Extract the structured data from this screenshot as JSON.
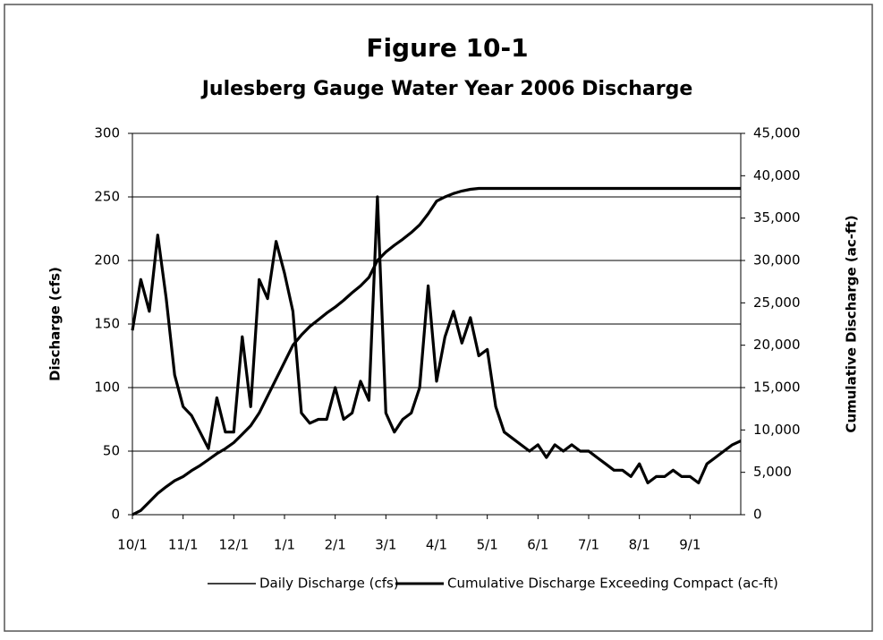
{
  "chart_data": {
    "type": "line",
    "title": "Figure 10-1",
    "subtitle": "Julesberg Gauge Water Year 2006 Discharge",
    "y_label": "Discharge (cfs)",
    "y2_label": "Cumulative Discharge (ac-ft)",
    "categories": [
      "10/1",
      null,
      null,
      null,
      null,
      null,
      "11/1",
      null,
      null,
      null,
      null,
      null,
      "12/1",
      null,
      null,
      null,
      null,
      null,
      "1/1",
      null,
      null,
      null,
      null,
      null,
      "2/1",
      null,
      null,
      null,
      null,
      null,
      "3/1",
      null,
      null,
      null,
      null,
      null,
      "4/1",
      null,
      null,
      null,
      null,
      null,
      "5/1",
      null,
      null,
      null,
      null,
      null,
      "6/1",
      null,
      null,
      null,
      null,
      null,
      "7/1",
      null,
      null,
      null,
      null,
      null,
      "8/1",
      null,
      null,
      null,
      null,
      null,
      "9/1",
      null,
      null,
      null,
      null,
      null,
      null
    ],
    "series": [
      {
        "name": "Daily Discharge (cfs)",
        "color": "#000000",
        "values": [
          145,
          185,
          160,
          220,
          170,
          110,
          85,
          78,
          65,
          52,
          92,
          65,
          65,
          140,
          85,
          185,
          170,
          215,
          190,
          160,
          80,
          72,
          75,
          75,
          100,
          75,
          80,
          105,
          90,
          250,
          80,
          65,
          75,
          80,
          100,
          180,
          105,
          140,
          160,
          135,
          155,
          125,
          130,
          85,
          65,
          60,
          55,
          50,
          55,
          45,
          55,
          50,
          55,
          50,
          50,
          45,
          40,
          35,
          35,
          30,
          40,
          25,
          30,
          30,
          35,
          30,
          30,
          25,
          40,
          45,
          50,
          55,
          58
        ]
      },
      {
        "name": "Cumulative Discharge Exceeding Compact (ac-ft)",
        "color": "#000000",
        "axis": "y2",
        "values": [
          0,
          500,
          1500,
          2500,
          3300,
          4000,
          4500,
          5200,
          5800,
          6500,
          7200,
          7800,
          8500,
          9500,
          10500,
          12000,
          14000,
          16000,
          18000,
          20000,
          21200,
          22200,
          23000,
          23800,
          24500,
          25300,
          26200,
          27000,
          28000,
          30000,
          31000,
          31800,
          32500,
          33300,
          34200,
          35500,
          37000,
          37500,
          37900,
          38200,
          38400,
          38500,
          38500,
          38500,
          38500,
          38500,
          38500,
          38500,
          38500,
          38500,
          38500,
          38500,
          38500,
          38500,
          38500,
          38500,
          38500,
          38500,
          38500,
          38500,
          38500,
          38500,
          38500,
          38500,
          38500,
          38500,
          38500,
          38500,
          38500,
          38500,
          38500,
          38500,
          38500
        ]
      }
    ],
    "ylim": [
      0,
      300
    ],
    "yticks": [
      0,
      50,
      100,
      150,
      200,
      250,
      300
    ],
    "y2lim": [
      0,
      45000
    ],
    "y2ticks": [
      0,
      {
        "value": 5000,
        "label": "5,000"
      },
      {
        "value": 10000,
        "label": "10,000"
      },
      {
        "value": 15000,
        "label": "15,000"
      },
      {
        "value": 20000,
        "label": "20,000"
      },
      {
        "value": 25000,
        "label": "25,000"
      },
      {
        "value": 30000,
        "label": "30,000"
      },
      {
        "value": 35000,
        "label": "35,000"
      },
      {
        "value": 40000,
        "label": "40,000"
      },
      {
        "value": 45000,
        "label": "45,000"
      }
    ],
    "grid": true,
    "legend": "bottom"
  }
}
